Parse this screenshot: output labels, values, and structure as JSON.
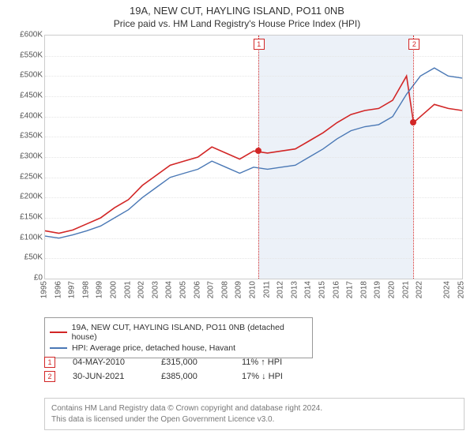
{
  "title_line1": "19A, NEW CUT, HAYLING ISLAND, PO11 0NB",
  "title_line2": "Price paid vs. HM Land Registry's House Price Index (HPI)",
  "chart": {
    "type": "line",
    "x_years": [
      1995,
      1996,
      1997,
      1998,
      1999,
      2000,
      2001,
      2002,
      2003,
      2004,
      2005,
      2006,
      2007,
      2008,
      2009,
      2010,
      2011,
      2012,
      2013,
      2014,
      2015,
      2016,
      2017,
      2018,
      2019,
      2020,
      2021,
      2022,
      2024,
      2025
    ],
    "ylim": [
      0,
      600000
    ],
    "ytick_step": 50000,
    "ylabel_prefix": "£",
    "ylabel_suffix": "K",
    "background_color": "#ffffff",
    "grid_color": "#e5e5e5",
    "plot_border_color": "#cccccc",
    "shade_color": "rgba(200,215,235,0.35)",
    "shade_x_start": 2010.33,
    "shade_x_end": 2021.5,
    "series": [
      {
        "name": "property",
        "label": "19A, NEW CUT, HAYLING ISLAND, PO11 0NB (detached house)",
        "color": "#d22626",
        "line_width": 1.6,
        "data": [
          [
            1995,
            118000
          ],
          [
            1996,
            112000
          ],
          [
            1997,
            120000
          ],
          [
            1998,
            135000
          ],
          [
            1999,
            150000
          ],
          [
            2000,
            175000
          ],
          [
            2001,
            195000
          ],
          [
            2002,
            230000
          ],
          [
            2003,
            255000
          ],
          [
            2004,
            280000
          ],
          [
            2005,
            290000
          ],
          [
            2006,
            300000
          ],
          [
            2007,
            325000
          ],
          [
            2008,
            310000
          ],
          [
            2009,
            295000
          ],
          [
            2010,
            315000
          ],
          [
            2011,
            310000
          ],
          [
            2012,
            315000
          ],
          [
            2013,
            320000
          ],
          [
            2014,
            340000
          ],
          [
            2015,
            360000
          ],
          [
            2016,
            385000
          ],
          [
            2017,
            405000
          ],
          [
            2018,
            415000
          ],
          [
            2019,
            420000
          ],
          [
            2020,
            440000
          ],
          [
            2021,
            500000
          ],
          [
            2021.5,
            385000
          ],
          [
            2022,
            400000
          ],
          [
            2023,
            430000
          ],
          [
            2024,
            420000
          ],
          [
            2025,
            415000
          ]
        ]
      },
      {
        "name": "hpi",
        "label": "HPI: Average price, detached house, Havant",
        "color": "#4a78b5",
        "line_width": 1.4,
        "data": [
          [
            1995,
            105000
          ],
          [
            1996,
            100000
          ],
          [
            1997,
            108000
          ],
          [
            1998,
            118000
          ],
          [
            1999,
            130000
          ],
          [
            2000,
            150000
          ],
          [
            2001,
            170000
          ],
          [
            2002,
            200000
          ],
          [
            2003,
            225000
          ],
          [
            2004,
            250000
          ],
          [
            2005,
            260000
          ],
          [
            2006,
            270000
          ],
          [
            2007,
            290000
          ],
          [
            2008,
            275000
          ],
          [
            2009,
            260000
          ],
          [
            2010,
            275000
          ],
          [
            2011,
            270000
          ],
          [
            2012,
            275000
          ],
          [
            2013,
            280000
          ],
          [
            2014,
            300000
          ],
          [
            2015,
            320000
          ],
          [
            2016,
            345000
          ],
          [
            2017,
            365000
          ],
          [
            2018,
            375000
          ],
          [
            2019,
            380000
          ],
          [
            2020,
            400000
          ],
          [
            2021,
            455000
          ],
          [
            2022,
            500000
          ],
          [
            2023,
            520000
          ],
          [
            2024,
            500000
          ],
          [
            2025,
            495000
          ]
        ]
      }
    ],
    "markers": [
      {
        "id": "1",
        "x": 2010.33,
        "color": "#d22626",
        "dot_y": 315000
      },
      {
        "id": "2",
        "x": 2021.5,
        "color": "#d22626",
        "dot_y": 385000
      }
    ]
  },
  "legend": {
    "items": [
      {
        "color": "#d22626",
        "text": "19A, NEW CUT, HAYLING ISLAND, PO11 0NB (detached house)"
      },
      {
        "color": "#4a78b5",
        "text": "HPI: Average price, detached house, Havant"
      }
    ]
  },
  "events": [
    {
      "id": "1",
      "color": "#d22626",
      "date": "04-MAY-2010",
      "price": "£315,000",
      "delta": "11% ↑ HPI"
    },
    {
      "id": "2",
      "color": "#d22626",
      "date": "30-JUN-2021",
      "price": "£385,000",
      "delta": "17% ↓ HPI"
    }
  ],
  "footer_line1": "Contains HM Land Registry data © Crown copyright and database right 2024.",
  "footer_line2": "This data is licensed under the Open Government Licence v3.0."
}
